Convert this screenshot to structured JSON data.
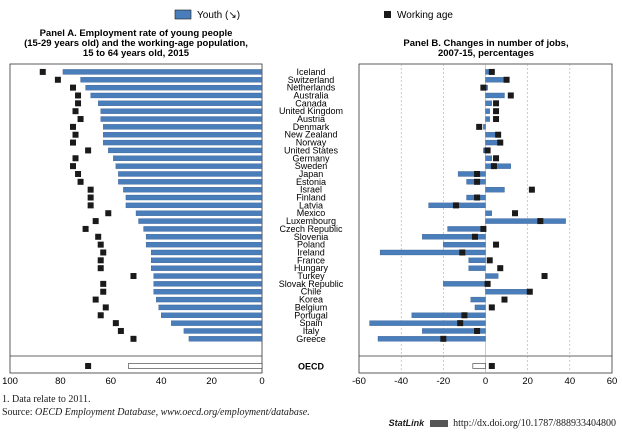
{
  "chart_data": [
    {
      "type": "bar",
      "title": "Panel A. Employment rate of young people (15-29 years old) and the working-age population, 15 to 64 years old, 2015",
      "title_lines": [
        "Panel A. Employment rate of young people",
        "(15-29 years old) and the working-age population,",
        "15 to 64 years old, 2015"
      ],
      "orientation": "horizontal",
      "x_reversed": true,
      "xlim": [
        0,
        100
      ],
      "xticks": [
        "100",
        "80",
        "60",
        "40",
        "20",
        "0"
      ],
      "categories": [
        "Iceland",
        "Switzerland",
        "Netherlands",
        "Australia",
        "Canada",
        "United Kingdom",
        "Austria",
        "Denmark",
        "New Zealand",
        "Norway",
        "United States",
        "Germany",
        "Sweden",
        "Japan",
        "Estonia",
        "Israel",
        "Finland",
        "Latvia",
        "Mexico",
        "Luxembourg",
        "Czech Republic",
        "Slovenia",
        "Poland",
        "Ireland",
        "France",
        "Hungary",
        "Turkey",
        "Slovak Republic",
        "Chile",
        "Korea",
        "Belgium",
        "Portugal",
        "Spain",
        "Italy",
        "Greece"
      ],
      "oecd_label": "OECD",
      "series": [
        {
          "name": "Youth (↘)",
          "style": "bar",
          "values": [
            79,
            72,
            70,
            68,
            65,
            64,
            64,
            63,
            63,
            63,
            61,
            59,
            58,
            57,
            57,
            55,
            54,
            54,
            50,
            49,
            47,
            46,
            46,
            44,
            44,
            44,
            43,
            43,
            43,
            42,
            41,
            40,
            36,
            31,
            29
          ]
        },
        {
          "name": "Working age",
          "style": "marker",
          "values": [
            87,
            81,
            75,
            73,
            73,
            74,
            72,
            75,
            74,
            75,
            69,
            74,
            75,
            73,
            72,
            68,
            68,
            68,
            61,
            66,
            70,
            65,
            64,
            63,
            64,
            64,
            51,
            63,
            63,
            66,
            62,
            64,
            58,
            56,
            51
          ]
        }
      ],
      "oecd": {
        "youth": 53,
        "working_age": 69
      },
      "colors": {
        "youth": "#4a7ebb",
        "working_age": "#1a1a1a"
      }
    },
    {
      "type": "bar",
      "title": "Panel B. Changes in number of jobs, 2007-15, percentages",
      "title_lines": [
        "Panel B. Changes in number of jobs,",
        "2007-15, percentages"
      ],
      "orientation": "horizontal",
      "xlim": [
        -60,
        60
      ],
      "xticks": [
        "-60",
        "-40",
        "-20",
        "0",
        "20",
        "40",
        "60"
      ],
      "categories": [
        "Iceland",
        "Switzerland",
        "Netherlands",
        "Australia",
        "Canada",
        "United Kingdom",
        "Austria",
        "Denmark",
        "New Zealand",
        "Norway",
        "United States",
        "Germany",
        "Sweden",
        "Japan",
        "Estonia",
        "Israel",
        "Finland",
        "Latvia",
        "Mexico",
        "Luxembourg",
        "Czech Republic",
        "Slovenia",
        "Poland",
        "Ireland",
        "France",
        "Hungary",
        "Turkey",
        "Slovak Republic",
        "Chile",
        "Korea",
        "Belgium",
        "Portugal",
        "Spain",
        "Italy",
        "Greece"
      ],
      "series": [
        {
          "name": "Youth (↘)",
          "style": "bar",
          "values": [
            3,
            10,
            1,
            9,
            3,
            2,
            2,
            -1,
            6,
            7,
            -1,
            3,
            12,
            -13,
            -9,
            9,
            -9,
            -27,
            3,
            38,
            -18,
            -30,
            -20,
            -50,
            -8,
            -8,
            6,
            -20,
            21,
            -7,
            -5,
            -35,
            -55,
            -30,
            -51
          ]
        },
        {
          "name": "Working age",
          "style": "marker",
          "values": [
            3,
            10,
            -1,
            12,
            5,
            5,
            5,
            -3,
            6,
            7,
            1,
            5,
            4,
            -4,
            -4,
            22,
            -4,
            -14,
            14,
            26,
            -1,
            -5,
            5,
            -11,
            2,
            7,
            28,
            1,
            21,
            9,
            3,
            -10,
            -12,
            -4,
            -20
          ]
        }
      ],
      "oecd": {
        "youth": -6,
        "working_age": 3
      },
      "colors": {
        "youth": "#4a7ebb",
        "working_age": "#1a1a1a"
      }
    }
  ],
  "legend": {
    "youth_label": "Youth (↘)",
    "working_label": "Working age"
  },
  "footnote": "1.  Data relate to 2011.",
  "source_label": "Source:",
  "source_text": "OECD Employment Database, www.oecd.org/employment/database.",
  "statlink_label": "StatLink",
  "statlink_url": "http://dx.doi.org/10.1787/888933404800"
}
